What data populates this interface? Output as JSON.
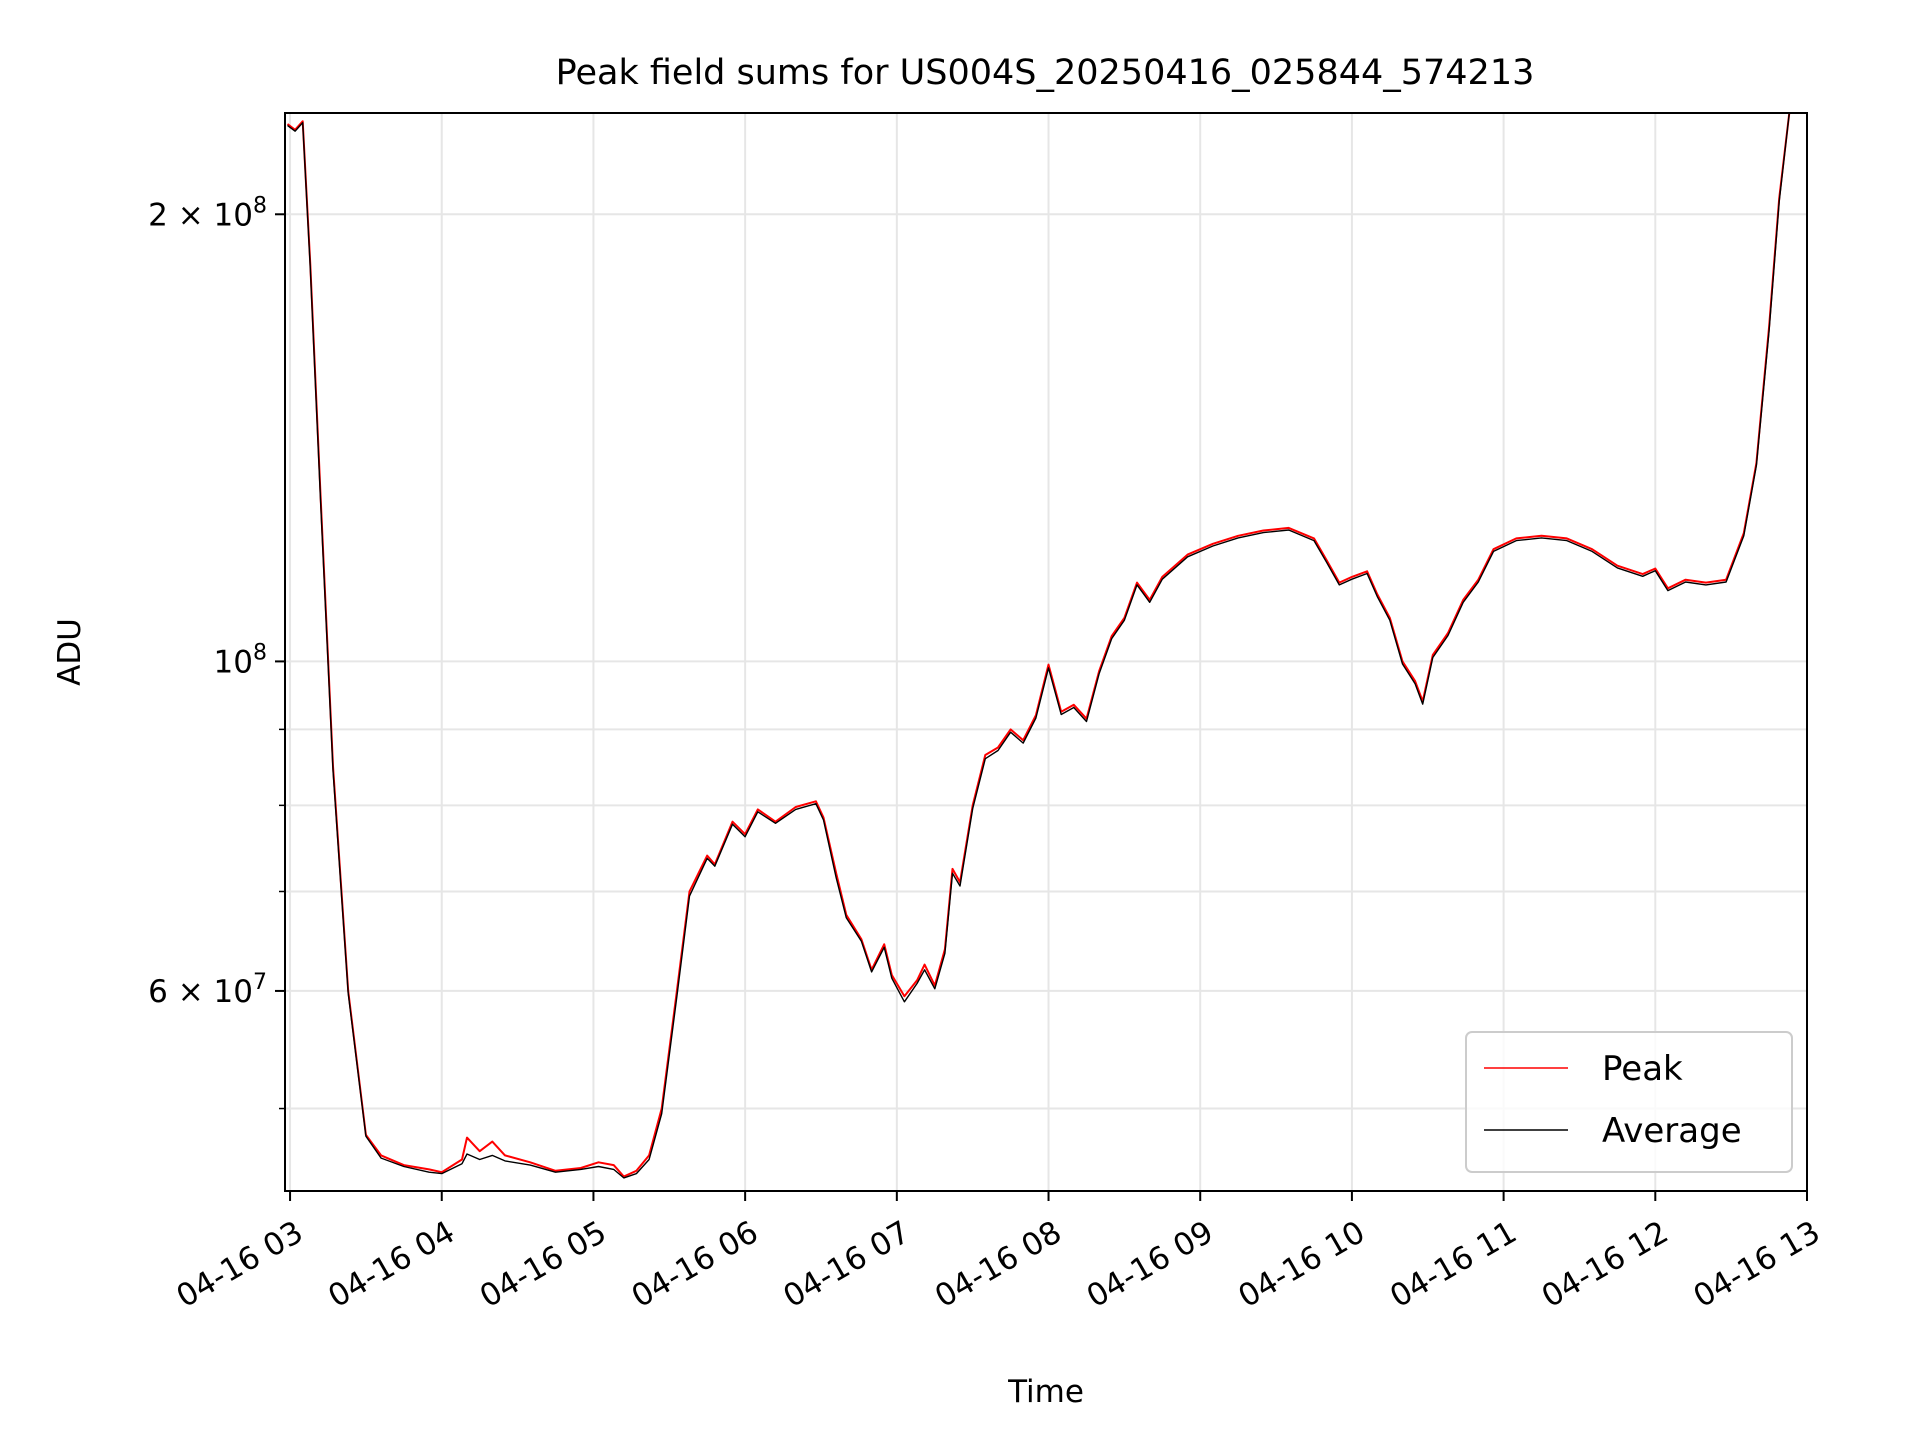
{
  "chart_data": {
    "type": "line",
    "title": "Peak field sums for US004S_20250416_025844_574213",
    "xlabel": "Time",
    "ylabel": "ADU",
    "y_scale": "log",
    "ylim": [
      44000000,
      234000000
    ],
    "xlim": [
      "2025-04-16 02:58",
      "2025-04-16 13:00"
    ],
    "x_ticks": [
      "04-16 03",
      "04-16 04",
      "04-16 05",
      "04-16 06",
      "04-16 07",
      "04-16 08",
      "04-16 09",
      "04-16 10",
      "04-16 11",
      "04-16 12",
      "04-16 13"
    ],
    "y_ticks": [
      {
        "value": 60000000,
        "mantissa": "6",
        "base": "10",
        "exp": "7"
      },
      {
        "value": 100000000,
        "mantissa": "",
        "base": "10",
        "exp": "8"
      },
      {
        "value": 200000000,
        "mantissa": "2",
        "base": "10",
        "exp": "8"
      }
    ],
    "y_minor_ticks": [
      50000000,
      70000000,
      80000000,
      90000000
    ],
    "grid": true,
    "legend_position": "lower-right",
    "series": [
      {
        "name": "Peak",
        "color": "#ff0000",
        "points": [
          [
            "2025-04-16 02:59",
            230000000
          ],
          [
            "2025-04-16 03:02",
            228000000
          ],
          [
            "2025-04-16 03:05",
            231000000
          ],
          [
            "2025-04-16 03:08",
            185000000
          ],
          [
            "2025-04-16 03:12",
            130000000
          ],
          [
            "2025-04-16 03:17",
            85000000
          ],
          [
            "2025-04-16 03:23",
            60000000
          ],
          [
            "2025-04-16 03:30",
            48000000
          ],
          [
            "2025-04-16 03:36",
            46500000
          ],
          [
            "2025-04-16 03:45",
            45800000
          ],
          [
            "2025-04-16 03:55",
            45500000
          ],
          [
            "2025-04-16 04:00",
            45300000
          ],
          [
            "2025-04-16 04:08",
            46200000
          ],
          [
            "2025-04-16 04:10",
            47800000
          ],
          [
            "2025-04-16 04:15",
            46800000
          ],
          [
            "2025-04-16 04:20",
            47500000
          ],
          [
            "2025-04-16 04:25",
            46500000
          ],
          [
            "2025-04-16 04:35",
            46000000
          ],
          [
            "2025-04-16 04:45",
            45400000
          ],
          [
            "2025-04-16 04:55",
            45600000
          ],
          [
            "2025-04-16 05:02",
            46000000
          ],
          [
            "2025-04-16 05:08",
            45800000
          ],
          [
            "2025-04-16 05:12",
            45000000
          ],
          [
            "2025-04-16 05:17",
            45400000
          ],
          [
            "2025-04-16 05:22",
            46500000
          ],
          [
            "2025-04-16 05:27",
            50000000
          ],
          [
            "2025-04-16 05:33",
            60000000
          ],
          [
            "2025-04-16 05:38",
            70000000
          ],
          [
            "2025-04-16 05:45",
            74000000
          ],
          [
            "2025-04-16 05:48",
            73000000
          ],
          [
            "2025-04-16 05:55",
            78000000
          ],
          [
            "2025-04-16 06:00",
            76500000
          ],
          [
            "2025-04-16 06:05",
            79500000
          ],
          [
            "2025-04-16 06:12",
            78000000
          ],
          [
            "2025-04-16 06:20",
            79800000
          ],
          [
            "2025-04-16 06:28",
            80500000
          ],
          [
            "2025-04-16 06:31",
            78500000
          ],
          [
            "2025-04-16 06:36",
            72000000
          ],
          [
            "2025-04-16 06:40",
            67500000
          ],
          [
            "2025-04-16 06:46",
            65000000
          ],
          [
            "2025-04-16 06:50",
            62000000
          ],
          [
            "2025-04-16 06:55",
            64500000
          ],
          [
            "2025-04-16 06:58",
            61500000
          ],
          [
            "2025-04-16 07:03",
            59500000
          ],
          [
            "2025-04-16 07:08",
            61000000
          ],
          [
            "2025-04-16 07:11",
            62500000
          ],
          [
            "2025-04-16 07:15",
            60500000
          ],
          [
            "2025-04-16 07:19",
            64000000
          ],
          [
            "2025-04-16 07:22",
            72500000
          ],
          [
            "2025-04-16 07:25",
            71000000
          ],
          [
            "2025-04-16 07:30",
            80000000
          ],
          [
            "2025-04-16 07:35",
            86500000
          ],
          [
            "2025-04-16 07:40",
            87500000
          ],
          [
            "2025-04-16 07:45",
            90000000
          ],
          [
            "2025-04-16 07:50",
            88500000
          ],
          [
            "2025-04-16 07:55",
            92000000
          ],
          [
            "2025-04-16 08:00",
            99500000
          ],
          [
            "2025-04-16 08:05",
            92500000
          ],
          [
            "2025-04-16 08:10",
            93500000
          ],
          [
            "2025-04-16 08:15",
            91500000
          ],
          [
            "2025-04-16 08:20",
            98500000
          ],
          [
            "2025-04-16 08:25",
            104000000
          ],
          [
            "2025-04-16 08:30",
            107000000
          ],
          [
            "2025-04-16 08:35",
            113000000
          ],
          [
            "2025-04-16 08:40",
            110000000
          ],
          [
            "2025-04-16 08:45",
            114000000
          ],
          [
            "2025-04-16 08:55",
            118000000
          ],
          [
            "2025-04-16 09:05",
            120000000
          ],
          [
            "2025-04-16 09:15",
            121500000
          ],
          [
            "2025-04-16 09:25",
            122500000
          ],
          [
            "2025-04-16 09:35",
            123000000
          ],
          [
            "2025-04-16 09:45",
            121000000
          ],
          [
            "2025-04-16 09:50",
            117000000
          ],
          [
            "2025-04-16 09:55",
            113000000
          ],
          [
            "2025-04-16 10:00",
            114000000
          ],
          [
            "2025-04-16 10:06",
            115000000
          ],
          [
            "2025-04-16 10:10",
            111000000
          ],
          [
            "2025-04-16 10:15",
            107000000
          ],
          [
            "2025-04-16 10:20",
            100000000
          ],
          [
            "2025-04-16 10:25",
            97000000
          ],
          [
            "2025-04-16 10:28",
            94000000
          ],
          [
            "2025-04-16 10:32",
            101000000
          ],
          [
            "2025-04-16 10:38",
            104500000
          ],
          [
            "2025-04-16 10:44",
            110000000
          ],
          [
            "2025-04-16 10:50",
            113500000
          ],
          [
            "2025-04-16 10:56",
            119000000
          ],
          [
            "2025-04-16 11:05",
            121000000
          ],
          [
            "2025-04-16 11:15",
            121500000
          ],
          [
            "2025-04-16 11:25",
            121000000
          ],
          [
            "2025-04-16 11:35",
            119000000
          ],
          [
            "2025-04-16 11:45",
            116000000
          ],
          [
            "2025-04-16 11:55",
            114500000
          ],
          [
            "2025-04-16 12:00",
            115500000
          ],
          [
            "2025-04-16 12:05",
            112000000
          ],
          [
            "2025-04-16 12:12",
            113500000
          ],
          [
            "2025-04-16 12:20",
            113000000
          ],
          [
            "2025-04-16 12:28",
            113500000
          ],
          [
            "2025-04-16 12:35",
            122000000
          ],
          [
            "2025-04-16 12:40",
            136000000
          ],
          [
            "2025-04-16 12:45",
            168000000
          ],
          [
            "2025-04-16 12:49",
            205000000
          ],
          [
            "2025-04-16 12:53",
            234000000
          ]
        ]
      },
      {
        "name": "Average",
        "color": "#000000",
        "points": [
          [
            "2025-04-16 02:59",
            229500000
          ],
          [
            "2025-04-16 03:02",
            227500000
          ],
          [
            "2025-04-16 03:05",
            230500000
          ],
          [
            "2025-04-16 03:08",
            184000000
          ],
          [
            "2025-04-16 03:12",
            129000000
          ],
          [
            "2025-04-16 03:17",
            84500000
          ],
          [
            "2025-04-16 03:23",
            59800000
          ],
          [
            "2025-04-16 03:30",
            47900000
          ],
          [
            "2025-04-16 03:36",
            46300000
          ],
          [
            "2025-04-16 03:45",
            45700000
          ],
          [
            "2025-04-16 03:55",
            45300000
          ],
          [
            "2025-04-16 04:00",
            45200000
          ],
          [
            "2025-04-16 04:08",
            45900000
          ],
          [
            "2025-04-16 04:10",
            46600000
          ],
          [
            "2025-04-16 04:15",
            46200000
          ],
          [
            "2025-04-16 04:20",
            46500000
          ],
          [
            "2025-04-16 04:25",
            46100000
          ],
          [
            "2025-04-16 04:35",
            45800000
          ],
          [
            "2025-04-16 04:45",
            45300000
          ],
          [
            "2025-04-16 04:55",
            45500000
          ],
          [
            "2025-04-16 05:02",
            45700000
          ],
          [
            "2025-04-16 05:08",
            45500000
          ],
          [
            "2025-04-16 05:12",
            44900000
          ],
          [
            "2025-04-16 05:17",
            45200000
          ],
          [
            "2025-04-16 05:22",
            46200000
          ],
          [
            "2025-04-16 05:27",
            49600000
          ],
          [
            "2025-04-16 05:33",
            59500000
          ],
          [
            "2025-04-16 05:38",
            69500000
          ],
          [
            "2025-04-16 05:45",
            73700000
          ],
          [
            "2025-04-16 05:48",
            72800000
          ],
          [
            "2025-04-16 05:55",
            77700000
          ],
          [
            "2025-04-16 06:00",
            76200000
          ],
          [
            "2025-04-16 06:05",
            79200000
          ],
          [
            "2025-04-16 06:12",
            77800000
          ],
          [
            "2025-04-16 06:20",
            79500000
          ],
          [
            "2025-04-16 06:28",
            80200000
          ],
          [
            "2025-04-16 06:31",
            78200000
          ],
          [
            "2025-04-16 06:36",
            71500000
          ],
          [
            "2025-04-16 06:40",
            67200000
          ],
          [
            "2025-04-16 06:46",
            64800000
          ],
          [
            "2025-04-16 06:50",
            61800000
          ],
          [
            "2025-04-16 06:55",
            64200000
          ],
          [
            "2025-04-16 06:58",
            61200000
          ],
          [
            "2025-04-16 07:03",
            59000000
          ],
          [
            "2025-04-16 07:08",
            60700000
          ],
          [
            "2025-04-16 07:11",
            62000000
          ],
          [
            "2025-04-16 07:15",
            60200000
          ],
          [
            "2025-04-16 07:19",
            63600000
          ],
          [
            "2025-04-16 07:22",
            72000000
          ],
          [
            "2025-04-16 07:25",
            70600000
          ],
          [
            "2025-04-16 07:30",
            79600000
          ],
          [
            "2025-04-16 07:35",
            86000000
          ],
          [
            "2025-04-16 07:40",
            87100000
          ],
          [
            "2025-04-16 07:45",
            89600000
          ],
          [
            "2025-04-16 07:50",
            88100000
          ],
          [
            "2025-04-16 07:55",
            91600000
          ],
          [
            "2025-04-16 08:00",
            99000000
          ],
          [
            "2025-04-16 08:05",
            92100000
          ],
          [
            "2025-04-16 08:10",
            93100000
          ],
          [
            "2025-04-16 08:15",
            91100000
          ],
          [
            "2025-04-16 08:20",
            98100000
          ],
          [
            "2025-04-16 08:25",
            103600000
          ],
          [
            "2025-04-16 08:30",
            106600000
          ],
          [
            "2025-04-16 08:35",
            112600000
          ],
          [
            "2025-04-16 08:40",
            109600000
          ],
          [
            "2025-04-16 08:45",
            113600000
          ],
          [
            "2025-04-16 08:55",
            117600000
          ],
          [
            "2025-04-16 09:05",
            119600000
          ],
          [
            "2025-04-16 09:15",
            121100000
          ],
          [
            "2025-04-16 09:25",
            122100000
          ],
          [
            "2025-04-16 09:35",
            122600000
          ],
          [
            "2025-04-16 09:45",
            120600000
          ],
          [
            "2025-04-16 09:50",
            116600000
          ],
          [
            "2025-04-16 09:55",
            112600000
          ],
          [
            "2025-04-16 10:00",
            113600000
          ],
          [
            "2025-04-16 10:06",
            114600000
          ],
          [
            "2025-04-16 10:10",
            110600000
          ],
          [
            "2025-04-16 10:15",
            106600000
          ],
          [
            "2025-04-16 10:20",
            99600000
          ],
          [
            "2025-04-16 10:25",
            96600000
          ],
          [
            "2025-04-16 10:28",
            93600000
          ],
          [
            "2025-04-16 10:32",
            100600000
          ],
          [
            "2025-04-16 10:38",
            104100000
          ],
          [
            "2025-04-16 10:44",
            109600000
          ],
          [
            "2025-04-16 10:50",
            113100000
          ],
          [
            "2025-04-16 10:56",
            118600000
          ],
          [
            "2025-04-16 11:05",
            120600000
          ],
          [
            "2025-04-16 11:15",
            121100000
          ],
          [
            "2025-04-16 11:25",
            120600000
          ],
          [
            "2025-04-16 11:35",
            118600000
          ],
          [
            "2025-04-16 11:45",
            115600000
          ],
          [
            "2025-04-16 11:55",
            114100000
          ],
          [
            "2025-04-16 12:00",
            115100000
          ],
          [
            "2025-04-16 12:05",
            111600000
          ],
          [
            "2025-04-16 12:12",
            113100000
          ],
          [
            "2025-04-16 12:20",
            112600000
          ],
          [
            "2025-04-16 12:28",
            113100000
          ],
          [
            "2025-04-16 12:35",
            121500000
          ],
          [
            "2025-04-16 12:40",
            135500000
          ],
          [
            "2025-04-16 12:45",
            167000000
          ],
          [
            "2025-04-16 12:49",
            204000000
          ],
          [
            "2025-04-16 12:53",
            234000000
          ]
        ]
      }
    ]
  }
}
